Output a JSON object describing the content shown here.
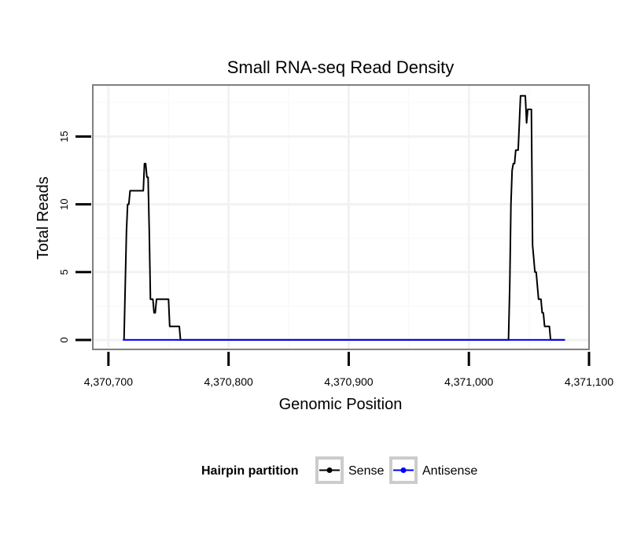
{
  "chart_data": {
    "type": "line",
    "title": "Small RNA-seq Read Density",
    "xlabel": "Genomic Position",
    "ylabel": "Total Reads",
    "xlim": [
      4370687,
      4371100
    ],
    "ylim": [
      -0.7,
      18.8
    ],
    "x_ticks": [
      4370700,
      4370800,
      4370900,
      4371000,
      4371100
    ],
    "x_tick_labels": [
      "4,370,700",
      "4,370,800",
      "4,370,900",
      "4,371,000",
      "4,371,100"
    ],
    "y_ticks": [
      0,
      5,
      10,
      15
    ],
    "y_tick_labels": [
      "0",
      "5",
      "10",
      "15"
    ],
    "grid": true,
    "legend": {
      "title": "Hairpin partition",
      "position": "bottom",
      "entries": [
        "Sense",
        "Antisense"
      ]
    },
    "series": [
      {
        "name": "Sense",
        "color": "#000000",
        "x": [
          4370713,
          4370715,
          4370716,
          4370717,
          4370718,
          4370719,
          4370729,
          4370730,
          4370731,
          4370732,
          4370733,
          4370734,
          4370735,
          4370736,
          4370737,
          4370738,
          4370739,
          4370740,
          4370741,
          4370742,
          4370750,
          4370751,
          4370757,
          4370758,
          4370759,
          4370760,
          4371033,
          4371034,
          4371035,
          4371036,
          4371037,
          4371038,
          4371039,
          4371040,
          4371041,
          4371042,
          4371043,
          4371044,
          4371046,
          4371047,
          4371048,
          4371049,
          4371052,
          4371053,
          4371054,
          4371055,
          4371056,
          4371057,
          4371058,
          4371059,
          4371060,
          4371061,
          4371062,
          4371063,
          4371066,
          4371067,
          4371068,
          4371069,
          4371080
        ],
        "values": [
          0,
          8,
          10,
          10,
          11,
          11,
          11,
          13,
          13,
          12,
          12,
          8,
          3,
          3,
          3,
          2,
          2,
          3,
          3,
          3,
          3,
          1,
          1,
          1,
          1,
          0,
          0,
          4,
          10,
          12.5,
          13,
          13,
          14,
          14,
          14,
          16,
          18,
          18,
          18,
          18,
          16,
          17,
          17,
          7,
          6,
          5,
          5,
          4,
          3,
          3,
          3,
          2,
          2,
          1,
          1,
          1,
          0,
          0,
          0
        ]
      },
      {
        "name": "Antisense",
        "color": "#0000ff",
        "x": [
          4370712,
          4370760,
          4371033,
          4371080
        ],
        "values": [
          0,
          0,
          0,
          0
        ]
      }
    ]
  }
}
